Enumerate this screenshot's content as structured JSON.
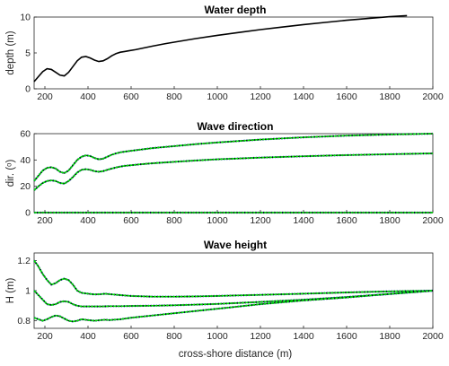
{
  "colors": {
    "model_black": "#000000",
    "model_blue": "#1f3fd0",
    "model_green": "#00e000"
  },
  "chart_data": [
    {
      "type": "line",
      "title": "Water depth",
      "xlabel": "",
      "ylabel": "depth (m)",
      "xlim": [
        150,
        2000
      ],
      "ylim": [
        0,
        10
      ],
      "xticks": [
        "200",
        "400",
        "600",
        "800",
        "1000",
        "1200",
        "1400",
        "1600",
        "1800",
        "2000"
      ],
      "yticks": [
        "0",
        "5",
        "10"
      ],
      "series": [
        {
          "color": "#000000",
          "x": [
            150,
            170,
            190,
            210,
            230,
            250,
            270,
            290,
            310,
            330,
            350,
            370,
            390,
            410,
            430,
            450,
            470,
            490,
            510,
            530,
            550,
            570,
            590,
            620,
            660,
            700,
            760,
            800,
            900,
            1000,
            1100,
            1200,
            1300,
            1400,
            1500,
            1600,
            1700,
            1800,
            1880
          ],
          "y": [
            1.0,
            1.7,
            2.4,
            2.8,
            2.7,
            2.3,
            1.9,
            1.8,
            2.3,
            3.1,
            3.9,
            4.4,
            4.5,
            4.3,
            4.0,
            3.8,
            3.9,
            4.2,
            4.6,
            4.9,
            5.1,
            5.2,
            5.3,
            5.45,
            5.7,
            5.95,
            6.3,
            6.5,
            7.0,
            7.45,
            7.85,
            8.25,
            8.6,
            8.95,
            9.25,
            9.55,
            9.8,
            10.05,
            10.2
          ]
        }
      ]
    },
    {
      "type": "line",
      "title": "Wave direction",
      "xlabel": "",
      "ylabel": "dir. (ᵒ)",
      "xlim": [
        150,
        2000
      ],
      "ylim": [
        0,
        60
      ],
      "xticks": [
        "200",
        "400",
        "600",
        "800",
        "1000",
        "1200",
        "1400",
        "1600",
        "1800",
        "2000"
      ],
      "yticks": [
        "0",
        "20",
        "40",
        "60"
      ],
      "series": [
        {
          "color": "#000000",
          "x": [
            150,
            170,
            190,
            210,
            230,
            250,
            270,
            290,
            310,
            330,
            350,
            370,
            390,
            410,
            430,
            450,
            470,
            490,
            510,
            530,
            550,
            570,
            600,
            650,
            700,
            800,
            900,
            1000,
            1200,
            1400,
            1600,
            1800,
            2000
          ],
          "y": [
            24,
            28,
            32,
            34,
            34.5,
            33.5,
            31,
            30,
            32,
            36,
            40,
            42.5,
            43.5,
            43,
            41.5,
            40.5,
            41,
            42.5,
            44,
            45,
            45.8,
            46.3,
            47,
            48,
            49,
            50.5,
            52,
            53.3,
            55.5,
            57.2,
            58.5,
            59.4,
            60
          ]
        },
        {
          "color": "#000000",
          "x": [
            150,
            170,
            190,
            210,
            230,
            250,
            270,
            290,
            310,
            330,
            350,
            370,
            390,
            410,
            430,
            450,
            470,
            490,
            510,
            530,
            550,
            570,
            600,
            650,
            700,
            800,
            900,
            1000,
            1200,
            1400,
            1600,
            1800,
            2000
          ],
          "y": [
            17,
            20,
            22.5,
            24,
            24.5,
            24,
            22.5,
            22,
            24,
            27,
            30.5,
            32.5,
            33,
            32.5,
            31.5,
            31,
            31.5,
            32.5,
            33.5,
            34.3,
            35,
            35.5,
            36,
            36.8,
            37.5,
            38.6,
            39.6,
            40.5,
            41.8,
            42.8,
            43.7,
            44.4,
            45
          ]
        },
        {
          "color": "#000000",
          "x": [
            150,
            2000
          ],
          "y": [
            0,
            0
          ]
        }
      ]
    },
    {
      "type": "line",
      "title": "Wave height",
      "xlabel": "cross-shore distance (m)",
      "ylabel": "H (m)",
      "xlim": [
        150,
        2000
      ],
      "ylim": [
        0.75,
        1.25
      ],
      "xticks": [
        "200",
        "400",
        "600",
        "800",
        "1000",
        "1200",
        "1400",
        "1600",
        "1800",
        "2000"
      ],
      "yticks": [
        "0.8",
        "1",
        "1.2"
      ],
      "series": [
        {
          "color": "#000000",
          "x": [
            150,
            170,
            190,
            210,
            230,
            250,
            270,
            290,
            310,
            330,
            350,
            370,
            400,
            430,
            460,
            480,
            500,
            550,
            600,
            700,
            800,
            900,
            1000,
            1200,
            1400,
            1600,
            1800,
            2000
          ],
          "y": [
            1.2,
            1.16,
            1.11,
            1.07,
            1.04,
            1.05,
            1.07,
            1.08,
            1.07,
            1.04,
            1.0,
            0.985,
            0.98,
            0.975,
            0.977,
            0.98,
            0.977,
            0.97,
            0.965,
            0.96,
            0.96,
            0.962,
            0.965,
            0.972,
            0.98,
            0.988,
            0.995,
            1.0
          ]
        },
        {
          "color": "#000000",
          "x": [
            150,
            170,
            190,
            210,
            230,
            250,
            270,
            290,
            310,
            330,
            350,
            370,
            400,
            430,
            460,
            480,
            500,
            550,
            600,
            700,
            800,
            900,
            1000,
            1200,
            1400,
            1600,
            1800,
            2000
          ],
          "y": [
            1.0,
            0.97,
            0.94,
            0.91,
            0.905,
            0.91,
            0.925,
            0.93,
            0.925,
            0.91,
            0.9,
            0.895,
            0.895,
            0.895,
            0.895,
            0.896,
            0.897,
            0.897,
            0.898,
            0.9,
            0.903,
            0.907,
            0.912,
            0.925,
            0.94,
            0.958,
            0.978,
            1.0
          ]
        },
        {
          "color": "#000000",
          "x": [
            150,
            170,
            190,
            210,
            230,
            250,
            270,
            290,
            310,
            330,
            350,
            370,
            400,
            430,
            460,
            480,
            500,
            550,
            600,
            700,
            800,
            900,
            1000,
            1200,
            1400,
            1600,
            1800,
            2000
          ],
          "y": [
            0.82,
            0.81,
            0.8,
            0.81,
            0.825,
            0.835,
            0.83,
            0.815,
            0.8,
            0.795,
            0.8,
            0.81,
            0.805,
            0.8,
            0.805,
            0.807,
            0.805,
            0.81,
            0.82,
            0.835,
            0.85,
            0.865,
            0.88,
            0.91,
            0.935,
            0.955,
            0.978,
            1.0
          ]
        }
      ]
    }
  ]
}
